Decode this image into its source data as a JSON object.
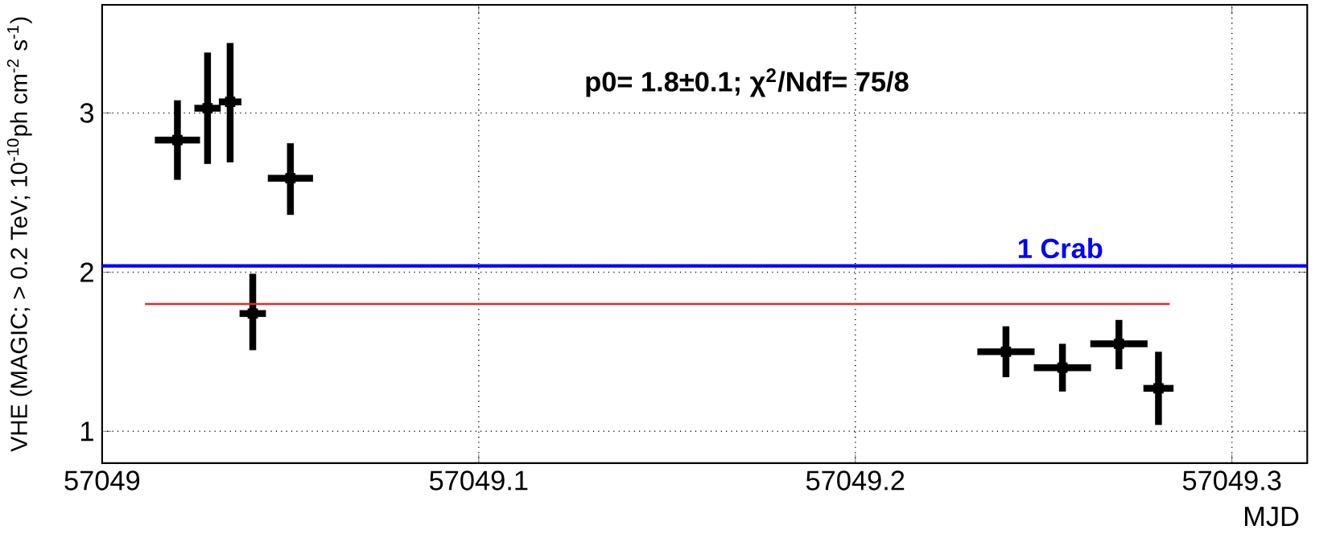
{
  "chart_data": {
    "type": "scatter",
    "xlabel": "MJD",
    "ylabel": "VHE (MAGIC; > 0.2 TeV; 10$^{-10}$ph cm$^{-2}$ s$^{-1}$)",
    "annotations": [
      "p0= 1.8±0.1;   χ$^{2}$/Ndf= 75/8"
    ],
    "xlim": [
      57049,
      57049.32
    ],
    "xticks": [
      57049,
      57049.1,
      57049.2,
      57049.3
    ],
    "ylim": [
      0.8,
      3.68
    ],
    "yticks": [
      1,
      2,
      3
    ],
    "grid": true,
    "series": [
      {
        "color": "#000000",
        "marker": "square",
        "x": [
          57049.02,
          57049.028,
          57049.034,
          57049.04,
          57049.05,
          57049.24,
          57049.255,
          57049.27,
          57049.2805
        ],
        "values": [
          2.83,
          3.03,
          3.07,
          1.74,
          2.59,
          1.5,
          1.4,
          1.55,
          1.27
        ],
        "errors": [
          [
            2.58,
            3.08
          ],
          [
            2.68,
            3.38
          ],
          [
            2.69,
            3.44
          ],
          [
            1.51,
            1.99
          ],
          [
            2.36,
            2.81
          ],
          [
            1.34,
            1.66
          ],
          [
            1.25,
            1.55
          ],
          [
            1.39,
            1.7
          ],
          [
            1.04,
            1.5
          ]
        ],
        "xerrors": [
          0.006,
          0.0035,
          0.003,
          0.0035,
          0.006,
          0.0076,
          0.0076,
          0.0076,
          0.004
        ]
      },
      {
        "type": "line",
        "color": "#e8282b",
        "x": [
          57049.0114,
          57049.2835
        ],
        "values": [
          1.8,
          1.8
        ]
      }
    ],
    "ref_lines": [
      {
        "axis": "y",
        "value": 2.04,
        "label": "1 Crab",
        "color": "#0000ff"
      }
    ]
  }
}
